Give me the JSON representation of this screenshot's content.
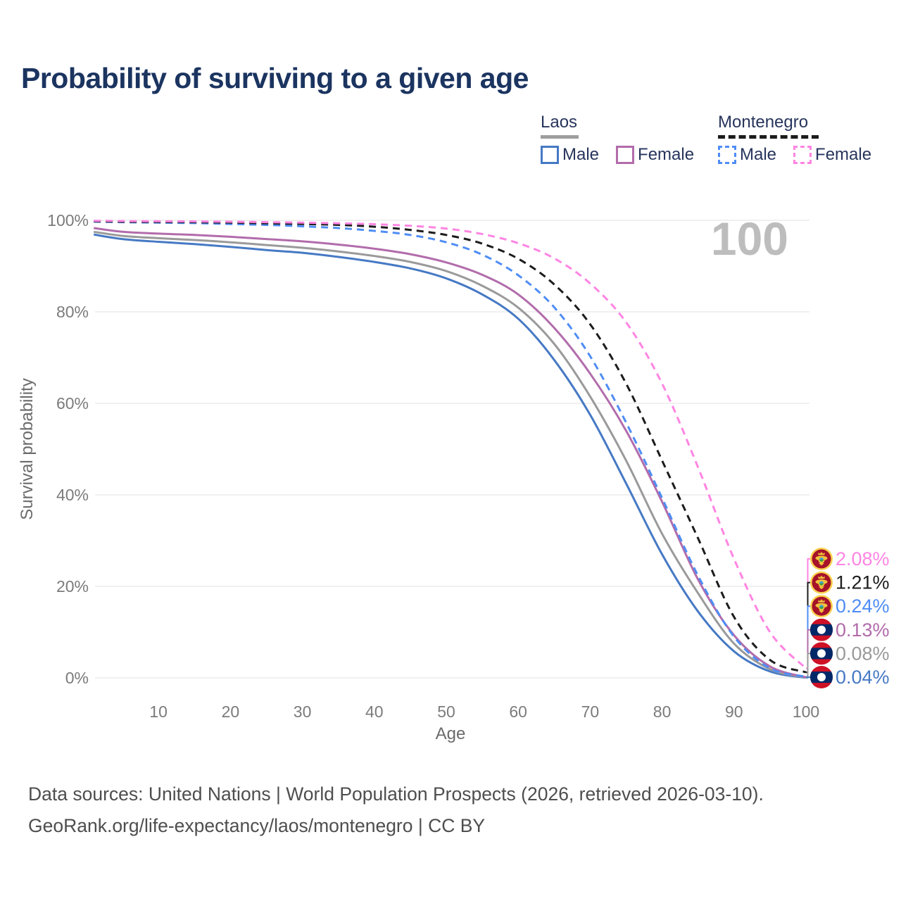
{
  "title": "Probability of surviving to a given age",
  "legend": {
    "groups": [
      {
        "label": "Laos",
        "line_style": "solid",
        "underline_color": "#9e9e9e",
        "items": [
          {
            "label": "Male",
            "color": "#4679c4"
          },
          {
            "label": "Female",
            "color": "#b26cab"
          }
        ]
      },
      {
        "label": "Montenegro",
        "line_style": "dashed",
        "underline_color": "#1c1c1c",
        "items": [
          {
            "label": "Male",
            "color": "#4f8df5"
          },
          {
            "label": "Female",
            "color": "#ff85e3"
          }
        ]
      }
    ]
  },
  "watermark_age": "100",
  "axes": {
    "x": {
      "label": "Age",
      "ticks": [
        "10",
        "20",
        "30",
        "40",
        "50",
        "60",
        "70",
        "80",
        "90",
        "100"
      ],
      "tick_values": [
        10,
        20,
        30,
        40,
        50,
        60,
        70,
        80,
        90,
        100
      ],
      "range": [
        0,
        100
      ]
    },
    "y": {
      "label": "Survival probability",
      "ticks": [
        "0%",
        "20%",
        "40%",
        "60%",
        "80%",
        "100%"
      ],
      "tick_values": [
        0,
        20,
        40,
        60,
        80,
        100
      ],
      "range": [
        0,
        100
      ]
    }
  },
  "chart_data": {
    "type": "line",
    "title": "Probability of surviving to a given age",
    "xlabel": "Age",
    "ylabel": "Survival probability",
    "xlim": [
      0,
      100
    ],
    "ylim": [
      0,
      100
    ],
    "grid": "horizontal",
    "legend_position": "top-right",
    "x_ages": [
      1,
      5,
      10,
      15,
      20,
      25,
      30,
      35,
      40,
      45,
      50,
      55,
      60,
      65,
      70,
      75,
      80,
      85,
      90,
      95,
      100
    ],
    "series": [
      {
        "name": "Laos Male",
        "country": "laos",
        "sex": "male",
        "color": "#4679c4",
        "dashed": false,
        "values": [
          96.9,
          95.9,
          95.3,
          94.8,
          94.2,
          93.5,
          92.9,
          92.0,
          90.9,
          89.5,
          87.3,
          83.8,
          78.5,
          69.5,
          57.5,
          42.5,
          27.0,
          14.5,
          5.8,
          1.4,
          0.04
        ],
        "end_label": "0.04%"
      },
      {
        "name": "Laos Both sexes",
        "country": "laos",
        "sex": "all",
        "color": "#9a9a9a",
        "dashed": false,
        "values": [
          97.5,
          96.6,
          96.1,
          95.7,
          95.2,
          94.6,
          94.0,
          93.2,
          92.2,
          90.9,
          88.9,
          85.7,
          80.9,
          73.0,
          61.5,
          47.5,
          31.5,
          18.5,
          7.5,
          1.9,
          0.08
        ],
        "end_label": "0.08%"
      },
      {
        "name": "Laos Female",
        "country": "laos",
        "sex": "female",
        "color": "#b26cab",
        "dashed": false,
        "values": [
          98.3,
          97.5,
          97.1,
          96.8,
          96.4,
          95.9,
          95.4,
          94.7,
          93.8,
          92.6,
          90.8,
          88.1,
          83.8,
          76.5,
          66.5,
          54.0,
          38.5,
          21.5,
          9.3,
          2.5,
          0.13
        ],
        "end_label": "0.13%"
      },
      {
        "name": "Montenegro Male",
        "country": "montenegro",
        "sex": "male",
        "color": "#4f8df5",
        "dashed": true,
        "values": [
          99.7,
          99.6,
          99.5,
          99.4,
          99.2,
          99.0,
          98.7,
          98.3,
          97.7,
          96.8,
          95.2,
          92.5,
          88.0,
          81.0,
          70.3,
          55.8,
          39.3,
          22.3,
          9.0,
          2.1,
          0.24
        ],
        "end_label": "0.24%"
      },
      {
        "name": "Montenegro Both sexes",
        "country": "montenegro",
        "sex": "all",
        "color": "#1c1c1c",
        "dashed": true,
        "values": [
          99.8,
          99.7,
          99.65,
          99.6,
          99.5,
          99.35,
          99.2,
          99.0,
          98.6,
          97.9,
          96.8,
          94.9,
          91.6,
          86.0,
          77.3,
          64.3,
          47.5,
          30.5,
          13.3,
          3.9,
          1.21
        ],
        "end_label": "1.21%"
      },
      {
        "name": "Montenegro Female",
        "country": "montenegro",
        "sex": "female",
        "color": "#ff85e3",
        "dashed": true,
        "values": [
          99.9,
          99.85,
          99.8,
          99.75,
          99.7,
          99.6,
          99.5,
          99.35,
          99.15,
          98.8,
          98.2,
          97.0,
          95.0,
          91.7,
          86.2,
          77.7,
          64.3,
          46.0,
          26.0,
          10.0,
          2.08
        ],
        "end_label": "2.08%"
      }
    ]
  },
  "flags": {
    "laos": {
      "red": "#ce1126",
      "blue": "#002868",
      "white": "#ffffff"
    },
    "montenegro": {
      "ring": "#f9d24f",
      "field": "#a51229",
      "emblem": "#f0c23c",
      "orb_top": "#3aa0d8",
      "orb_bottom": "#3f9e3f"
    }
  },
  "colors": {
    "title": "#1b3460",
    "grid": "#ececec",
    "tick_text": "#7b7b7b",
    "axis_title_text": "#6b6b6b",
    "watermark": "#bdbdbd",
    "footer_text": "#4e4e4e"
  },
  "footer": {
    "line1": "Data sources: United Nations | World Population Prospects (2026, retrieved 2026-03-10).",
    "line2": "GeoRank.org/life-expectancy/laos/montenegro | CC BY"
  }
}
